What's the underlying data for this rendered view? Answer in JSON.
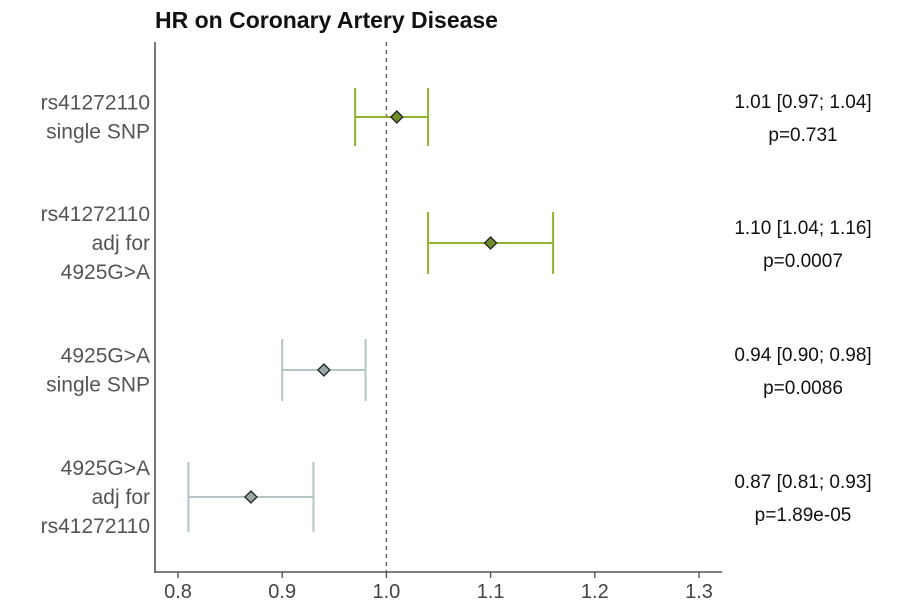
{
  "chart_data": {
    "type": "forest",
    "title": "HR on Coronary Artery Disease",
    "xlim": [
      0.775,
      1.3
    ],
    "xticks": [
      "0.8",
      "0.9",
      "1.0",
      "1.1",
      "1.2",
      "1.3"
    ],
    "reference_line": 1.0,
    "grid": false,
    "colors": {
      "rs41272110": "#8fb32e",
      "4925G>A": "#b5c4c4",
      "rs41272110_marker": "#6f8f2a",
      "4925G>A_marker": "#9aa7a8",
      "reference": "#666666",
      "axis": "#555555"
    },
    "rows": [
      {
        "label_lines": [
          "rs41272110",
          "single SNP"
        ],
        "hr": 1.01,
        "lo": 0.97,
        "hi": 1.04,
        "group": "rs41272110",
        "ci_text": "1.01 [0.97; 1.04]",
        "p_text": "p=0.731"
      },
      {
        "label_lines": [
          "rs41272110",
          "adj for",
          "4925G>A"
        ],
        "hr": 1.1,
        "lo": 1.04,
        "hi": 1.16,
        "group": "rs41272110",
        "ci_text": "1.10 [1.04; 1.16]",
        "p_text": "p=0.0007"
      },
      {
        "label_lines": [
          "4925G>A",
          "single SNP"
        ],
        "hr": 0.94,
        "lo": 0.9,
        "hi": 0.98,
        "group": "4925G>A",
        "ci_text": "0.94 [0.90; 0.98]",
        "p_text": "p=0.0086"
      },
      {
        "label_lines": [
          "4925G>A",
          "adj for",
          "rs41272110"
        ],
        "hr": 0.87,
        "lo": 0.81,
        "hi": 0.93,
        "group": "4925G>A",
        "ci_text": "0.87 [0.81; 0.93]",
        "p_text": "p=1.89e-05"
      }
    ]
  }
}
